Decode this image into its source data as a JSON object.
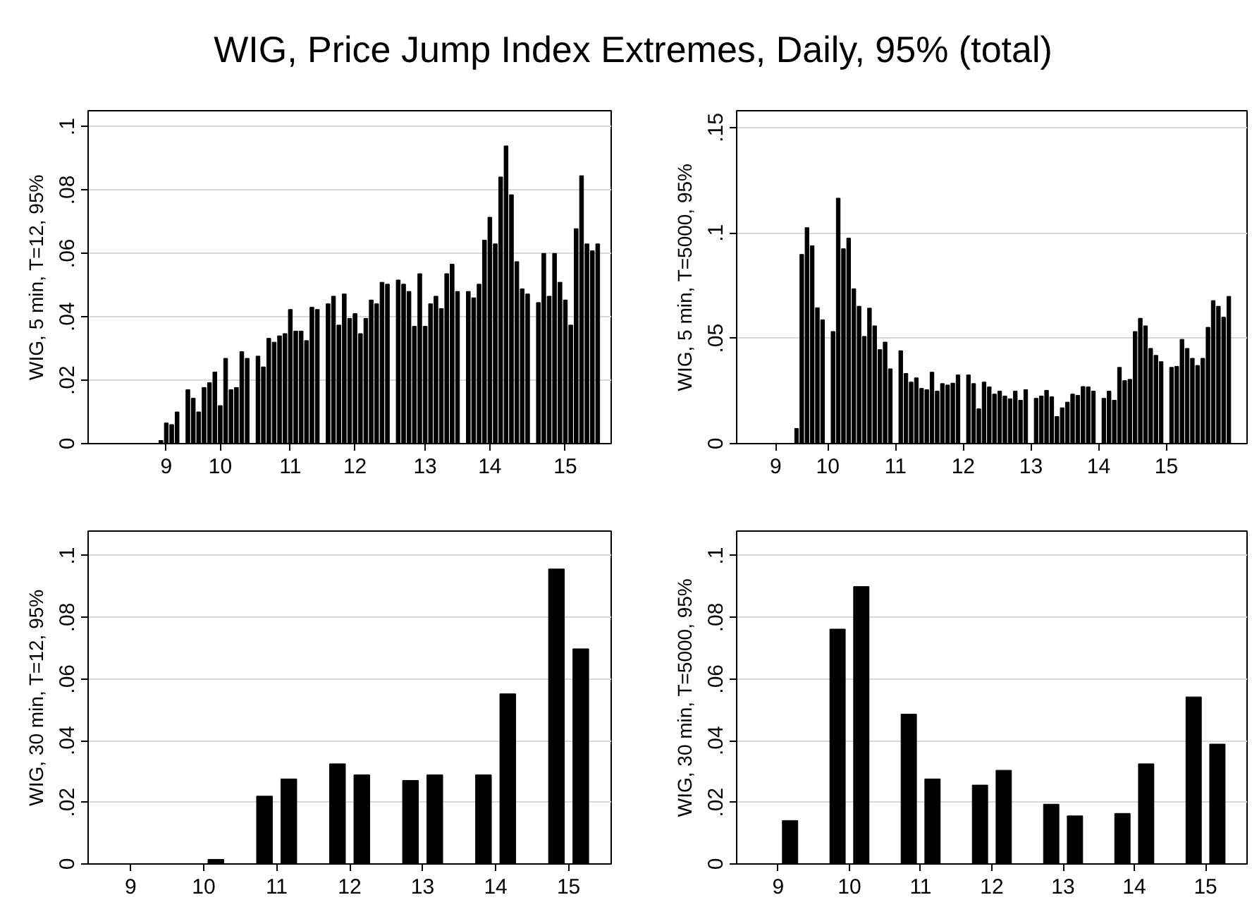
{
  "chart_data": [
    {
      "type": "bar",
      "title": "WIG, Price Jump Index Extremes, Daily, 95% (total)",
      "ylabel": "WIG, 5 min, T=12, 95%",
      "color": "#000000",
      "grid": "y",
      "categories": [
        null,
        null,
        null,
        null,
        null,
        null,
        null,
        null,
        null,
        null,
        null,
        null,
        null,
        null,
        "9",
        null,
        null,
        null,
        null,
        null,
        null,
        null,
        null,
        null,
        "10",
        null,
        null,
        null,
        null,
        null,
        null,
        null,
        null,
        null,
        null,
        null,
        null,
        "11",
        null,
        null,
        null,
        null,
        null,
        null,
        null,
        null,
        null,
        null,
        null,
        "12",
        null,
        null,
        null,
        null,
        null,
        null,
        null,
        null,
        null,
        null,
        null,
        null,
        "13",
        null,
        null,
        null,
        null,
        null,
        null,
        null,
        null,
        null,
        null,
        null,
        "14",
        null,
        null,
        null,
        null,
        null,
        null,
        null,
        null,
        null,
        null,
        null,
        null,
        null,
        "15",
        null,
        null,
        null,
        null,
        null,
        null,
        null,
        null
      ],
      "values": [
        null,
        null,
        null,
        null,
        null,
        null,
        null,
        null,
        null,
        null,
        null,
        null,
        null,
        0.001,
        0.0065,
        0.006,
        0.01,
        null,
        0.017,
        0.0143,
        0.01,
        0.0177,
        0.0192,
        0.0226,
        0.012,
        0.0269,
        0.017,
        0.0177,
        0.029,
        0.0269,
        null,
        0.0276,
        0.0242,
        0.0332,
        0.032,
        0.034,
        0.0347,
        0.0423,
        0.0355,
        0.0355,
        0.0325,
        0.043,
        0.0423,
        null,
        0.0441,
        0.0465,
        0.0374,
        0.0472,
        0.0395,
        0.041,
        0.0347,
        0.0395,
        0.0453,
        0.0441,
        0.0509,
        0.0503,
        null,
        0.0516,
        0.0503,
        0.048,
        0.037,
        0.0536,
        0.037,
        0.0441,
        0.0465,
        0.0426,
        0.0536,
        0.0566,
        0.048,
        null,
        0.048,
        0.046,
        0.0503,
        0.0642,
        0.0714,
        0.063,
        0.0841,
        0.0939,
        0.0785,
        0.0574,
        0.0488,
        0.0472,
        null,
        0.0445,
        0.06,
        0.0465,
        0.06,
        0.0509,
        0.0453,
        0.0374,
        0.0678,
        0.0845,
        0.063,
        0.0608,
        0.063,
        null,
        null
      ],
      "ylim": [
        0,
        0.105
      ],
      "yticks": [
        0,
        {
          "value": 0.02,
          "label": ".02"
        },
        {
          "value": 0.04,
          "label": ".04"
        },
        {
          "value": 0.06,
          "label": ".06"
        },
        {
          "value": 0.08,
          "label": ".08"
        },
        {
          "value": 0.1,
          "label": ".1"
        }
      ]
    },
    {
      "type": "bar",
      "ylabel": "WIG, 5 min, T=5000, 95%",
      "color": "#000000",
      "grid": "y",
      "categories": [
        null,
        null,
        null,
        null,
        null,
        null,
        null,
        "9",
        null,
        null,
        null,
        null,
        null,
        null,
        null,
        null,
        null,
        "10",
        null,
        null,
        null,
        null,
        null,
        null,
        null,
        null,
        null,
        null,
        null,
        null,
        "11",
        null,
        null,
        null,
        null,
        null,
        null,
        null,
        null,
        null,
        null,
        null,
        null,
        "12",
        null,
        null,
        null,
        null,
        null,
        null,
        null,
        null,
        null,
        null,
        null,
        null,
        "13",
        null,
        null,
        null,
        null,
        null,
        null,
        null,
        null,
        null,
        null,
        null,
        null,
        "14",
        null,
        null,
        null,
        null,
        null,
        null,
        null,
        null,
        null,
        null,
        null,
        null,
        "15",
        null,
        null,
        null,
        null,
        null,
        null,
        null,
        null,
        null,
        null,
        null,
        null,
        null,
        null,
        null
      ],
      "values": [
        null,
        null,
        null,
        null,
        null,
        null,
        null,
        null,
        null,
        null,
        null,
        0.0072,
        0.0898,
        0.1025,
        0.0939,
        0.0645,
        0.0588,
        null,
        0.0532,
        0.1165,
        0.0925,
        0.0975,
        0.0735,
        0.0652,
        0.0509,
        0.0643,
        0.0559,
        0.0446,
        0.0482,
        0.0355,
        null,
        0.0441,
        0.0333,
        0.0292,
        0.0312,
        0.0262,
        0.0256,
        0.0339,
        0.0249,
        0.0285,
        0.0278,
        0.0287,
        0.0326,
        null,
        0.0326,
        0.0285,
        0.0165,
        0.0292,
        0.0269,
        0.0235,
        0.0249,
        0.0226,
        0.0213,
        0.0249,
        0.0206,
        0.0256,
        null,
        0.0215,
        0.0226,
        0.0253,
        0.0222,
        0.0129,
        0.017,
        0.0197,
        0.0235,
        0.0229,
        0.0271,
        0.0269,
        0.0249,
        null,
        0.0215,
        0.0249,
        0.0206,
        0.0362,
        0.0299,
        0.0305,
        0.0532,
        0.0595,
        0.0559,
        0.0452,
        0.0419,
        0.0389,
        null,
        0.0362,
        0.0367,
        0.0495,
        0.0452,
        0.0405,
        0.0371,
        0.0405,
        0.0552,
        0.0679,
        0.0652,
        0.06,
        0.0699,
        null,
        null,
        null
      ],
      "ylim": [
        0,
        0.158
      ],
      "yticks": [
        0,
        {
          "value": 0.05,
          "label": ".05"
        },
        {
          "value": 0.1,
          "label": ".1"
        },
        {
          "value": 0.15,
          "label": ".15"
        }
      ]
    },
    {
      "type": "bar",
      "ylabel": "WIG, 30 min, T=12, 95%",
      "color": "#000000",
      "grid": "y",
      "categories": [
        null,
        null,
        null,
        "9",
        null,
        null,
        null,
        null,
        null,
        "10",
        null,
        null,
        null,
        null,
        null,
        "11",
        null,
        null,
        null,
        null,
        null,
        "12",
        null,
        null,
        null,
        null,
        null,
        "13",
        null,
        null,
        null,
        null,
        null,
        "14",
        null,
        null,
        null,
        null,
        null,
        "15",
        null,
        null,
        null
      ],
      "values": [
        null,
        null,
        null,
        null,
        null,
        null,
        null,
        null,
        null,
        null,
        0.0015,
        null,
        null,
        null,
        0.022,
        null,
        0.0276,
        null,
        null,
        null,
        0.0325,
        null,
        0.0289,
        null,
        null,
        null,
        0.0271,
        null,
        0.0289,
        null,
        null,
        null,
        0.0289,
        null,
        0.0552,
        null,
        null,
        null,
        0.0957,
        null,
        0.0698,
        null,
        null
      ],
      "ylim": [
        0,
        0.108
      ],
      "yticks": [
        0,
        {
          "value": 0.02,
          "label": ".02"
        },
        {
          "value": 0.04,
          "label": ".04"
        },
        {
          "value": 0.06,
          "label": ".06"
        },
        {
          "value": 0.08,
          "label": ".08"
        },
        {
          "value": 0.1,
          "label": ".1"
        }
      ]
    },
    {
      "type": "bar",
      "ylabel": "WIG, 30 min, T=5000, 95%",
      "color": "#000000",
      "grid": "y",
      "categories": [
        null,
        null,
        null,
        "9",
        null,
        null,
        null,
        null,
        null,
        "10",
        null,
        null,
        null,
        null,
        null,
        "11",
        null,
        null,
        null,
        null,
        null,
        "12",
        null,
        null,
        null,
        null,
        null,
        "13",
        null,
        null,
        null,
        null,
        null,
        "14",
        null,
        null,
        null,
        null,
        null,
        "15",
        null,
        null,
        null
      ],
      "values": [
        null,
        null,
        null,
        null,
        0.0141,
        null,
        null,
        null,
        0.0762,
        null,
        0.09,
        null,
        null,
        null,
        0.0486,
        null,
        0.0276,
        null,
        null,
        null,
        0.0256,
        null,
        0.0304,
        null,
        null,
        null,
        0.0194,
        null,
        0.0156,
        null,
        null,
        null,
        0.0164,
        null,
        0.0325,
        null,
        null,
        null,
        0.0542,
        null,
        0.0389,
        null,
        null
      ],
      "ylim": [
        0,
        0.108
      ],
      "yticks": [
        0,
        {
          "value": 0.02,
          "label": ".02"
        },
        {
          "value": 0.04,
          "label": ".04"
        },
        {
          "value": 0.06,
          "label": ".06"
        },
        {
          "value": 0.08,
          "label": ".08"
        },
        {
          "value": 0.1,
          "label": ".1"
        }
      ]
    }
  ]
}
